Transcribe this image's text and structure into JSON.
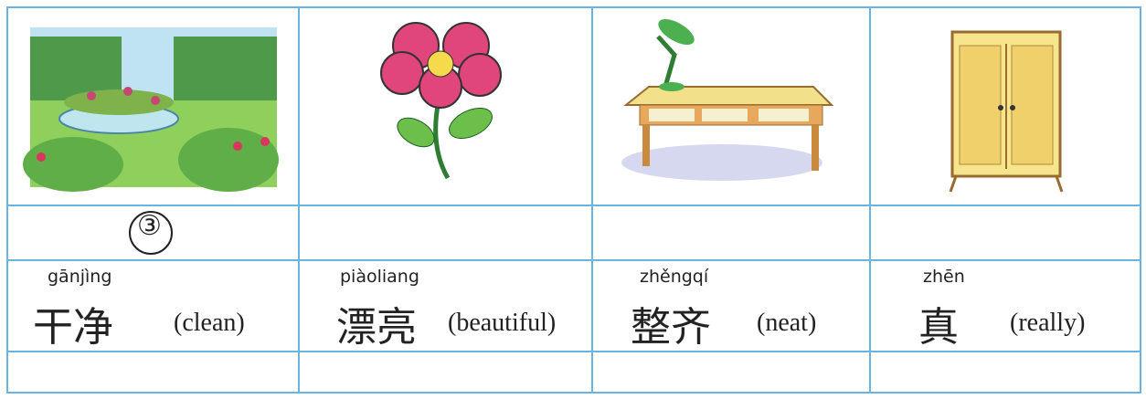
{
  "cells": [
    {
      "marker": "③",
      "pinyin": "gānjìng",
      "hanzi": "干净",
      "english": "(clean)"
    },
    {
      "pinyin": "piàoliang",
      "hanzi": "漂亮",
      "english": "(beautiful)"
    },
    {
      "pinyin": "zhěngqí",
      "hanzi": "整齐",
      "english": "(neat)"
    },
    {
      "pinyin": "zhēn",
      "hanzi": "真",
      "english": "(really)"
    }
  ]
}
